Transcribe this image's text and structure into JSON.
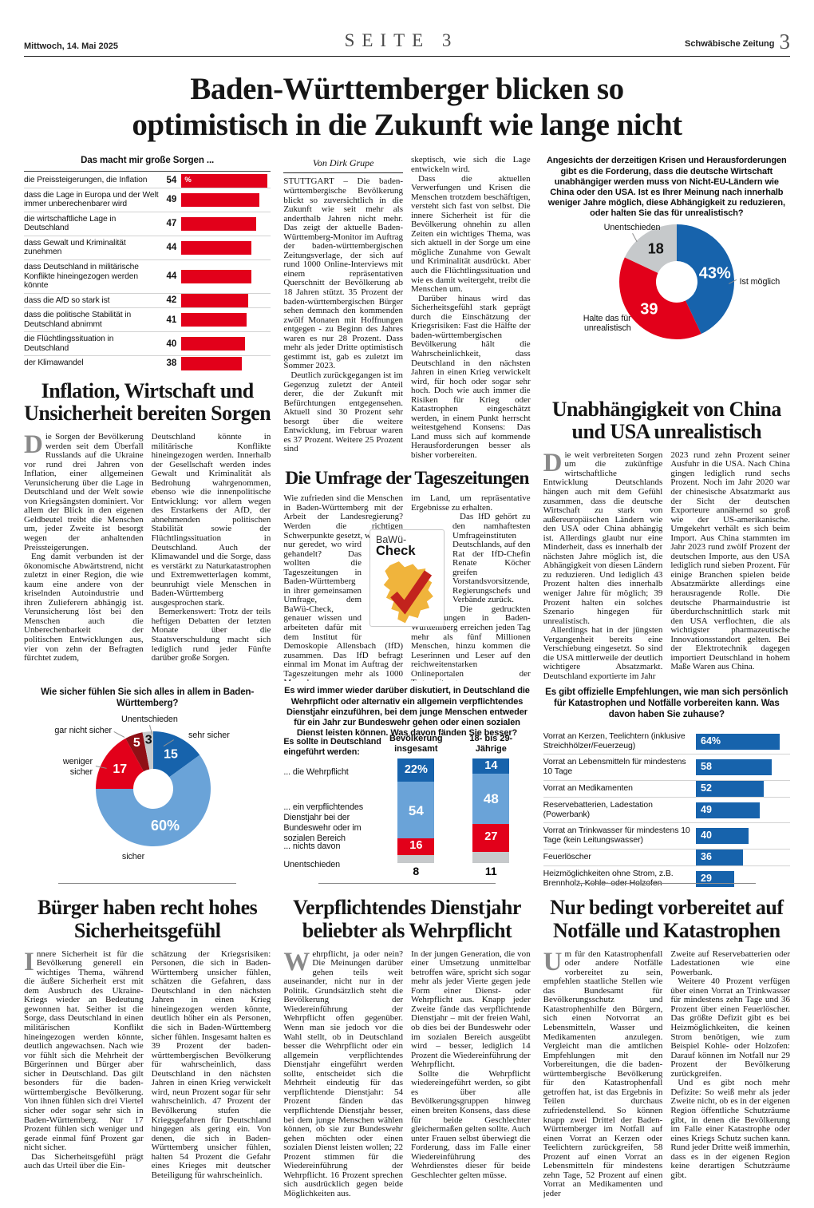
{
  "page": {
    "date": "Mittwoch, 14. Mai 2025",
    "page_label": "SEITE 3",
    "brand": "Schwäbische Zeitung",
    "page_number": "3",
    "main_headline": "Baden-Württemberger blicken so optimistisch in die Zukunft wie lange nicht",
    "byline": "Von Dirk Grupe"
  },
  "colors": {
    "red": "#e2001a",
    "dark_red": "#8f1016",
    "blue": "#1763ac",
    "light_blue": "#6aa3d8",
    "gray": "#c6c9cb",
    "logo_yellow": "#f0b43c",
    "logo_check_red": "#c2231d"
  },
  "logo": {
    "line1": "BaWü-",
    "line2": "Check"
  },
  "chart_data": [
    {
      "id": "sorgen",
      "type": "bar",
      "title": "Das macht mir große Sorgen ...",
      "unit_label": "%",
      "categories": [
        "die Preissteigerungen, die Inflation",
        "dass die Lage in Europa und der Welt immer unberechenbarer wird",
        "die wirtschaftliche Lage in Deutschland",
        "dass Gewalt und Kriminalität zunehmen",
        "dass Deutschland in militärische Konflikte hineingezogen werden könnte",
        "dass die AfD so stark ist",
        "dass die politische Stabilität in Deutschland abnimmt",
        "die Flüchtlingssituation in Deutschland",
        "der Klimawandel"
      ],
      "values": [
        54,
        49,
        47,
        44,
        44,
        42,
        41,
        40,
        38
      ],
      "bar_color": "#e2001a",
      "xlim": [
        0,
        56
      ]
    },
    {
      "id": "unabhaengigkeit",
      "type": "pie",
      "title": "Angesichts der derzeitigen Krisen und Herausforderungen gibt es die Forderung, dass die deutsche Wirtschaft unabhängiger werden muss von Nicht-EU-Ländern wie China oder den USA. Ist es Ihrer Meinung nach innerhalb weniger Jahre möglich, diese Abhängigkeit zu reduzieren, oder halten Sie das für unrealistisch?",
      "slices": [
        {
          "label": "Ist möglich",
          "value": 43,
          "display": "43%",
          "color": "#1763ac",
          "text_color": "#ffffff"
        },
        {
          "label": "Halte das für unrealistisch",
          "value": 39,
          "display": "39",
          "color": "#e2001a",
          "text_color": "#ffffff"
        },
        {
          "label": "Unentschieden",
          "value": 18,
          "display": "18",
          "color": "#c6c9cb",
          "text_color": "#111111"
        }
      ]
    },
    {
      "id": "sicherheit",
      "type": "pie",
      "title": "Wie sicher fühlen Sie sich alles in allem in Baden-Württemberg?",
      "slices": [
        {
          "label": "sehr sicher",
          "value": 15,
          "display": "15",
          "color": "#1763ac",
          "text_color": "#ffffff"
        },
        {
          "label": "sicher",
          "value": 60,
          "display": "60%",
          "color": "#6aa3d8",
          "text_color": "#ffffff"
        },
        {
          "label": "weniger sicher",
          "value": 17,
          "display": "17",
          "color": "#e2001a",
          "text_color": "#ffffff"
        },
        {
          "label": "gar nicht sicher",
          "value": 5,
          "display": "5",
          "color": "#8f1016",
          "text_color": "#ffffff"
        },
        {
          "label": "Unentschieden",
          "value": 3,
          "display": "3",
          "color": "#c6c9cb",
          "text_color": "#111111"
        }
      ]
    },
    {
      "id": "wehrpflicht",
      "type": "bar",
      "stacked": true,
      "title": "Es wird immer wieder darüber diskutiert, in Deutschland die Wehrpflicht oder alternativ ein allgemein verpflichtendes Dienstjahr einzuführen, bei dem junge Menschen entweder für ein Jahr zur Bundeswehr gehen oder einen sozialen Dienst leisten können.  Was davon fänden Sie besser?",
      "intro_label": "Es sollte in Deutschland eingeführt werden:",
      "row_labels": [
        "... die Wehrpflicht",
        "... ein verpflichtendes Dienstjahr bei der Bundeswehr oder im sozialen Bereich",
        "... nichts davon",
        "Unentschieden"
      ],
      "series": [
        {
          "name": "Bevölkerung insgesamt",
          "values": [
            22,
            54,
            16,
            8
          ],
          "displays": [
            "22%",
            "54",
            "16",
            "8"
          ]
        },
        {
          "name": "18- bis 29-Jährige",
          "values": [
            14,
            48,
            27,
            11
          ],
          "displays": [
            "14",
            "48",
            "27",
            "11"
          ]
        }
      ],
      "segment_colors": [
        "#1763ac",
        "#6aa3d8",
        "#e2001a",
        "#c6c9cb"
      ]
    },
    {
      "id": "vorrat",
      "type": "bar",
      "title": "Es gibt offizielle Empfehlungen, wie man sich persönlich für Katastrophen und Notfälle vorbereiten kann. Was davon haben Sie zuhause?",
      "categories": [
        "Vorrat an Kerzen, Teelichtern (inklusive Streichhölzer/Feuerzeug)",
        "Vorrat an Lebensmitteln für mindestens 10 Tage",
        "Vorrat an Medikamenten",
        "Reservebatterien, Ladestation (Powerbank)",
        "Vorrat an Trinkwasser für mindestens 10 Tage (kein Leitungswasser)",
        "Feuerlöscher",
        "Heizmöglichkeiten ohne Strom, z.B. Brennholz, Kohle- oder Holzofen"
      ],
      "values": [
        64,
        58,
        52,
        49,
        40,
        36,
        29
      ],
      "displays": [
        "64%",
        "58",
        "52",
        "49",
        "40",
        "36",
        "29"
      ],
      "bar_color": "#1763ac",
      "xlim": [
        0,
        70
      ]
    }
  ],
  "articles": {
    "main": {
      "col1": [
        {
          "noindent": true,
          "text": "STUTTGART – Die baden-württembergische Bevölkerung blickt so zuversichtlich in die Zukunft wie seit mehr als anderthalb Jahren nicht mehr. Das zeigt der aktuelle Baden-Württemberg-Monitor im Auftrag der baden-württembergischen Zeitungsverlage, der sich auf rund 1000 Online-Interviews mit einem repräsentativen Querschnitt der Bevölkerung ab 18 Jahren stützt. 35 Prozent der baden-württembergischen Bürger sehen demnach den kommenden zwölf Monaten mit Hoffnungen entgegen - zu Beginn des Jahres waren es nur 28 Prozent. Dass mehr als jeder Dritte optimistisch gestimmt ist, gab es zuletzt im Sommer 2023."
        },
        {
          "text": "Deutlich zurückgegangen ist im Gegenzug zuletzt der Anteil derer, die der Zukunft mit Befürchtungen entgegensehen. Aktuell sind 30 Prozent sehr besorgt über die weitere Entwicklung, im Februar waren es 37 Prozent. Weitere 25 Prozent sind"
        }
      ],
      "col2": [
        {
          "noindent": true,
          "text": "skeptisch, wie sich die Lage entwickeln wird."
        },
        {
          "text": "Dass die aktuellen Verwerfungen und Krisen die Menschen trotzdem beschäftigen, versteht sich fast von selbst. Die innere Sicherheit ist für die Bevölkerung ohnehin zu allen Zeiten ein wichtiges Thema, was sich aktuell in der Sorge um eine mögliche Zunahme von Gewalt und Kriminalität ausdrückt. Aber auch die Flüchtlingssituation und wie es damit weitergeht, treibt die Menschen um."
        },
        {
          "text": "Darüber hinaus wird das Sicherheitsgefühl stark geprägt durch die Einschätzung der Kriegsrisiken: Fast die Hälfte der baden-württembergischen Bevölkerung hält die Wahrscheinlichkeit, dass Deutschland in den nächsten Jahren in einen Krieg verwickelt wird, für hoch oder sogar sehr hoch. Doch wie auch immer die Risiken für Krieg oder Katastrophen eingeschätzt werden, in einem Punkt herrscht weitestgehend Konsens: Das Land muss sich auf kommende Herausforderungen besser als bisher vorbereiten."
        }
      ]
    },
    "umfrage": {
      "headline": "Die Umfrage der Tageszeitungen",
      "col1": [
        {
          "noindent": true,
          "text": "Wie zufrieden sind die Menschen in Baden-Württemberg mit der Arbeit der Landesregierung? Werden die richtigen Schwerpunkte gesetzt, wo wird"
        },
        {
          "noindent": true,
          "cut": {
            "side": "right",
            "w": 52,
            "h": 124
          },
          "text": "nur geredet, wo wird gehandelt? Das wollten die Tageszeitungen in Baden-Württemberg in ihrer gemeinsamen Umfrage, dem BaWü-Check, genauer wissen und arbeiteten dafür mit dem Institut für Demoskopie Allensbach (IfD) zusammen. Das IfD befragt einmal im Monat im Auftrag der Tageszeitungen mehr als 1000 Menschen"
        }
      ],
      "col2": [
        {
          "noindent": true,
          "text": "im Land, um repräsentative Ergebnisse zu erhalten."
        },
        {
          "cut": {
            "side": "left",
            "w": 52,
            "h": 124
          },
          "text": "Das IfD gehört zu den namhaftesten Umfrageinstituten Deutschlands, auf den Rat der IfD-Chefin Renate Köcher greifen Vorstandsvorsitzende, Regierungschefs und Verbände zurück."
        },
        {
          "text": "Die gedruckten Tageszeitungen in Baden-Württemberg erreichen jeden Tag mehr als fünf Millionen Menschen, hinzu kommen die Leserinnen und Leser auf den reichweitenstarken Onlineportalen der Tageszeitungen."
        }
      ]
    },
    "inflation": {
      "headline": "Inflation, Wirtschaft und Unsicherheit bereiten Sorgen",
      "col1": [
        {
          "noindent": true,
          "dc": "D",
          "text": "ie Sorgen der Bevölkerung werden seit dem Überfall Russlands auf die Ukraine vor rund drei Jahren von Inflation, einer allgemeinen Verunsicherung über die Lage in Deutschland und der Welt sowie von Kriegsängsten dominiert. Vor allem der Blick in den eigenen Geldbeutel treibt die Menschen um, jeder Zweite ist besorgt wegen der anhaltenden Preissteigerungen."
        },
        {
          "text": "Eng damit verbunden ist der ökonomische Abwärtstrend, nicht zuletzt in einer Region, die wie kaum eine andere von der kriselnden Autoindustrie und ihren Zulieferern abhängig ist. Verunsicherung löst bei den Menschen auch die Unberechenbarkeit der politischen Entwicklungen aus, vier von zehn der Befragten fürchtet zudem,"
        }
      ],
      "col2": [
        {
          "noindent": true,
          "text": "Deutschland könnte in militärische Konflikte hineingezogen werden. Innerhalb der Gesellschaft werden indes Gewalt und Kriminalität als Bedrohung wahrgenommen, ebenso wie die innenpolitische Entwicklung: vor allem wegen des Erstarkens der AfD, der abnehmenden politischen Stabilität sowie der Flüchtlingssituation in Deutschland. Auch der Klimawandel und die Sorge, dass es verstärkt zu Naturkatastrophen und Extremwetterlagen kommt, beunruhigt viele Menschen in Baden-Württemberg ausgesprochen stark."
        },
        {
          "text": "Bemerkenswert: Trotz der teils heftigen Debatten der letzten Monate über die Staatsverschuldung macht sich lediglich rund jeder Fünfte darüber große Sorgen."
        }
      ]
    },
    "unabhaengigkeit": {
      "headline": "Unabhängigkeit von China und USA unrealistisch",
      "col1": [
        {
          "noindent": true,
          "dc": "D",
          "text": "ie weit verbreiteten Sorgen um die zukünftige wirtschaftliche Entwicklung Deutschlands hängen auch mit dem Gefühl zusammen, dass die deutsche Wirtschaft zu stark von außereuropäischen Ländern wie den USA oder China abhängig ist. Allerdings glaubt nur eine Minderheit, dass es innerhalb der nächsten Jahre möglich ist, die Abhängigkeit von diesen Ländern zu reduzieren. Und lediglich 43 Prozent halten dies innerhalb weniger Jahre für möglich; 39 Prozent halten ein solches Szenario hingegen für unrealistisch."
        },
        {
          "text": "Allerdings hat in der jüngsten Vergangenheit bereits eine Verschiebung eingesetzt. So sind die USA mittlerweile der deutlich wichtigere Absatzmarkt. Deutschland exportierte im Jahr"
        }
      ],
      "col2": [
        {
          "noindent": true,
          "text": "2023 rund zehn Prozent seiner Ausfuhr in die USA. Nach China gingen lediglich rund sechs Prozent. Noch im Jahr 2020 war der chinesische Absatzmarkt aus der Sicht der deutschen Exporteure annähernd so groß wie der US-amerikanische. Umgekehrt verhält es sich beim Import. Aus China stammten im Jahr 2023 rund zwölf Prozent der deutschen Importe, aus den USA lediglich rund sieben Prozent. Für einige Branchen spielen beide Absatzmärkte allerdings eine herausragende Rolle. Die deutsche Pharmaindustrie ist überdurchschnittlich stark mit den USA verflochten, die als wichtigster pharmazeutische Innovationsstandort gelten. Bei der Elektrotechnik dagegen importiert Deutschland in hohem Maße Waren aus China."
        }
      ]
    },
    "sicherheitsgefuehl": {
      "headline": "Bürger haben recht hohes Sicherheitsgefühl",
      "col1": [
        {
          "noindent": true,
          "dc": "I",
          "text": "nnere Sicherheit ist für die Bevölkerung generell ein wichtiges Thema, während die äußere Sicherheit erst mit dem Ausbruch des Ukraine-Kriegs wieder an Bedeutung gewonnen hat. Seither ist die Sorge, dass Deutschland in einen militärischen Konflikt hineingezogen werden könnte, deutlich angewachsen. Nach wie vor fühlt sich die Mehrheit der Bürgerinnen und Bürger aber sicher in Deutschland. Das gilt besonders für die baden-württembergische Bevölkerung. Von ihnen fühlen sich drei Viertel sicher oder sogar sehr sich in Baden-Württemberg. Nur 17 Prozent fühlen sich weniger und gerade einmal fünf Prozent gar nicht sicher."
        },
        {
          "text": "Das Sicherheitsgefühl prägt auch das Urteil über die Ein-"
        }
      ],
      "col2": [
        {
          "noindent": true,
          "text": "schätzung der Kriegsrisiken: Personen, die sich in Baden-Württemberg unsicher fühlen, schätzen die Gefahren, dass Deutschland in den nächsten Jahren in einen Krieg hineingezogen werden könnte, deutlich höher ein als Personen, die sich in Baden-Württemberg sicher fühlen. Insgesamt halten es 39 Prozent der baden-württembergischen Bevölkerung für wahrscheinlich, dass Deutschland in den nächsten Jahren in einen Krieg verwickelt wird, neun Prozent sogar für sehr wahrscheinlich. 47 Prozent der Bevölkerung stufen die Kriegsgefahren für Deutschland hingegen als gering ein. Von denen, die sich in Baden-Württemberg unsicher fühlen, halten 54 Prozent die Gefahr eines Krieges mit deutscher Beteiligung für wahrscheinlich."
        }
      ]
    },
    "dienstjahr": {
      "headline": "Verpflichtendes Dienstjahr beliebter als Wehrpflicht",
      "col1": [
        {
          "noindent": true,
          "dc": "W",
          "text": "ehrpflicht, ja oder nein? Die Meinungen darüber gehen teils weit auseinander, nicht nur in der Politik. Grundsätzlich steht die Bevölkerung der Wiedereinführung der Wehrpflicht offen gegenüber. Wenn man sie jedoch vor die Wahl stellt, ob in Deutschland besser die Wehrpflicht oder ein allgemein verpflichtendes Dienstjahr eingeführt werden sollte, entscheidet sich die Mehrheit eindeutig für das verpflichtende Dienstjahr: 54 Prozent fänden das verpflichtende Dienstjahr besser, bei dem junge Menschen wählen können, ob sie zur Bundeswehr gehen möchten oder einen sozialen Dienst leisten wollen; 22 Prozent stimmen für die Wiedereinführung der Wehrpflicht. 16 Prozent sprechen sich ausdrücklich gegen beide Möglichkeiten aus."
        }
      ],
      "col2": [
        {
          "noindent": true,
          "text": "In der jungen Generation, die von einer Umsetzung unmittelbar betroffen wäre, spricht sich sogar mehr als jeder Vierte gegen jede Form einer Dienst- oder Wehrpflicht aus. Knapp jeder Zweite fände das verpflichtende Dienstjahr – mit der freien Wahl, ob dies bei der Bundeswehr oder im sozialen Bereich ausgeübt wird – besser, lediglich 14 Prozent die Wiedereinführung der Wehrpflicht."
        },
        {
          "text": "Sollte die Wehrpflicht wiedereingeführt werden, so gibt es über alle Bevölkerungsgruppen hinweg einen breiten Konsens, dass diese für beide Geschlechter gleichermaßen gelten sollte. Auch unter Frauen selbst überwiegt die Forderung, dass im Falle einer Wiedereinführung des Wehrdienstes dieser für beide Geschlechter gelten müsse."
        }
      ]
    },
    "notfaelle": {
      "headline": "Nur bedingt vorbereitet auf Notfälle und Katastrophen",
      "col1": [
        {
          "noindent": true,
          "dc": "U",
          "text": "m für den Katastrophenfall oder andere Notfälle vorbereitet zu sein, empfehlen staatliche Stellen wie das Bundesamt für Bevölkerungsschutz und Katastrophenhilfe den Bürgern, sich einen Notvorrat an Lebensmitteln, Wasser und Medikamenten anzulegen. Vergleicht man die amtlichen Empfehlungen mit den Vorbereitungen, die die baden-württembergische Bevölkerung für den Katastrophenfall getroffen hat, ist das Ergebnis in Teilen durchaus zufriedenstellend. So können knapp zwei Drittel der Baden-Württemberger im Notfall auf einen Vorrat an Kerzen oder Teelichtern zurückgreifen, 58 Prozent auf einen Vorrat an Lebensmitteln für mindestens zehn Tage, 52 Prozent auf einen Vorrat an Medikamenten und jeder"
        }
      ],
      "col2": [
        {
          "noindent": true,
          "text": "Zweite auf Reservebatterien oder Ladestationen wie eine Powerbank."
        },
        {
          "text": "Weitere 40 Prozent verfügen über einen Vorrat an Trinkwasser für mindestens zehn Tage und 36 Prozent über einen Feuerlöscher. Das größte Defizit gibt es bei Heizmöglichkeiten, die keinen Strom benötigen, wie zum Beispiel Kohle- oder Holzofen: Darauf können im Notfall nur 29 Prozent der Bevölkerung zurückgreifen."
        },
        {
          "text": "Und es gibt noch mehr Defizite: So weiß mehr als jeder Zweite nicht, ob es in der eigenen Region öffentliche Schutzräume gibt, in denen die Bevölkerung im Falle einer Katastrophe oder eines Kriegs Schutz suchen kann. Rund jeder Dritte weiß immerhin, dass es in der eigenen Region keine derartigen Schutzräume gibt."
        }
      ]
    }
  }
}
